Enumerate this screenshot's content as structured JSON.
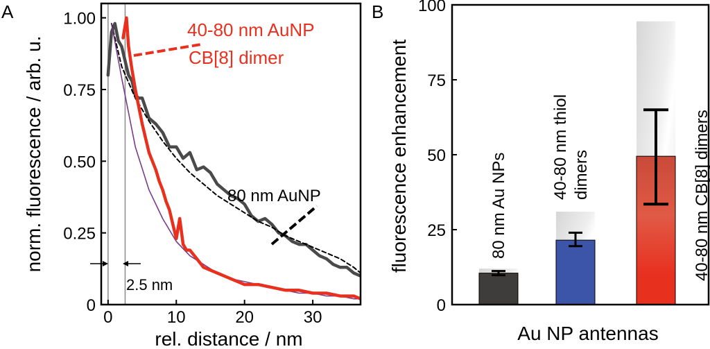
{
  "chart_data": [
    {
      "panel_label": "A",
      "type": "line",
      "title": "",
      "xlabel": "rel. distance / nm",
      "ylabel": "norm. fluorescence / arb. u.",
      "xlim": [
        -1,
        37
      ],
      "ylim": [
        0,
        1.05
      ],
      "xticks": [
        0,
        10,
        20,
        30
      ],
      "yticks": [
        "0",
        "0.25",
        "0.50",
        "0.75",
        "1.00"
      ],
      "series": [
        {
          "name": "80 nm AuNP",
          "color": "#4a4a4a",
          "x": [
            0,
            0.5,
            1,
            1.5,
            2,
            2.5,
            3,
            3.5,
            4,
            4.5,
            5,
            6,
            7,
            8,
            9,
            10,
            11,
            12,
            13,
            14,
            15,
            16,
            17,
            18,
            19,
            20,
            21,
            22,
            23,
            24,
            25,
            26,
            27,
            28,
            29,
            30,
            31,
            32,
            33,
            34,
            35,
            36,
            37
          ],
          "y": [
            0.8,
            0.95,
            0.98,
            0.92,
            0.9,
            0.85,
            0.8,
            0.78,
            0.73,
            0.72,
            0.72,
            0.65,
            0.63,
            0.6,
            0.55,
            0.55,
            0.51,
            0.53,
            0.47,
            0.48,
            0.46,
            0.42,
            0.4,
            0.38,
            0.37,
            0.35,
            0.31,
            0.29,
            0.3,
            0.28,
            0.25,
            0.24,
            0.22,
            0.21,
            0.21,
            0.19,
            0.17,
            0.16,
            0.14,
            0.13,
            0.13,
            0.11,
            0.1
          ]
        },
        {
          "name": "40-80 nm AuNP CB[8] dimer",
          "color": "#e8301f",
          "x": [
            2.2,
            2.7,
            3.0,
            3.5,
            4,
            4.5,
            5,
            5.5,
            6,
            6.5,
            7,
            7.5,
            8,
            8.5,
            9,
            9.5,
            10,
            10.5,
            11,
            11.5,
            12,
            13,
            14,
            15,
            16,
            17,
            18,
            19,
            20,
            22,
            24,
            26,
            28,
            30,
            32,
            34,
            36,
            37
          ],
          "y": [
            0.93,
            1.0,
            0.9,
            0.82,
            0.75,
            0.69,
            0.63,
            0.58,
            0.53,
            0.5,
            0.47,
            0.43,
            0.4,
            0.36,
            0.33,
            0.28,
            0.23,
            0.3,
            0.21,
            0.19,
            0.19,
            0.16,
            0.13,
            0.12,
            0.11,
            0.1,
            0.09,
            0.08,
            0.07,
            0.07,
            0.06,
            0.05,
            0.05,
            0.04,
            0.04,
            0.03,
            0.03,
            0.02
          ]
        },
        {
          "name": "80 nm AuNP fit",
          "color": "#000000",
          "style": "dashed",
          "x": [
            0.5,
            2,
            4,
            6,
            8,
            10,
            12,
            14,
            16,
            18,
            20,
            22,
            24,
            26,
            28,
            30,
            32,
            34,
            36,
            37
          ],
          "y": [
            0.98,
            0.83,
            0.72,
            0.64,
            0.57,
            0.51,
            0.46,
            0.42,
            0.38,
            0.35,
            0.32,
            0.29,
            0.27,
            0.24,
            0.22,
            0.2,
            0.18,
            0.16,
            0.13,
            0.11
          ]
        },
        {
          "name": "CB[8] dimer fit",
          "color": "#7a3a8a",
          "x": [
            0.5,
            2,
            4,
            6,
            8,
            10,
            12,
            14,
            16,
            18,
            20,
            22,
            24,
            26,
            28,
            30,
            32,
            34,
            36,
            37
          ],
          "y": [
            0.98,
            0.79,
            0.55,
            0.4,
            0.3,
            0.22,
            0.17,
            0.14,
            0.11,
            0.09,
            0.08,
            0.07,
            0.06,
            0.05,
            0.04,
            0.04,
            0.03,
            0.03,
            0.02,
            0.02
          ]
        }
      ],
      "vlines": [
        0,
        2.5
      ],
      "annotations": {
        "dimer_line1": "40-80 nm AuNP",
        "dimer_line2": "CB[8] dimer",
        "mono": "80 nm AuNP",
        "gap": "2.5 nm"
      }
    },
    {
      "panel_label": "B",
      "type": "bar",
      "title": "",
      "xlabel": "Au NP antennas",
      "ylabel": "fluorescence enhancement",
      "ylim": [
        0,
        100
      ],
      "yticks": [
        "0",
        "25",
        "50",
        "75",
        "100"
      ],
      "categories": [
        "80 nm Au NPs",
        "40-80 nm thiol dimers",
        "40-80 nm CB[8] dimers"
      ],
      "category_label_lines": [
        [
          "80 nm Au NPs"
        ],
        [
          "40-80 nm thiol",
          "dimers"
        ],
        [
          "40-80 nm CB[8] dimers"
        ]
      ],
      "values": [
        10.5,
        21.5,
        49.5
      ],
      "error_low": [
        9.8,
        19.5,
        33.5
      ],
      "error_high": [
        11.2,
        24.0,
        65.0
      ],
      "max_values": [
        12.0,
        31.0,
        94.5
      ],
      "colors": [
        "#3e3d3b",
        "#3d55a8",
        "#e8301f"
      ]
    }
  ]
}
